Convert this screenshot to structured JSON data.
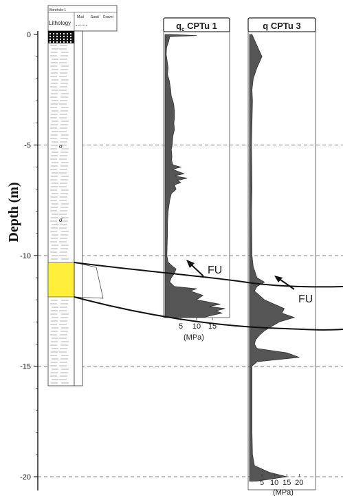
{
  "chart_data": {
    "type": "line",
    "ylabel": "Depth (m)",
    "ylim": [
      0,
      20
    ],
    "y_ticks": [
      "0",
      "-5",
      "-10",
      "-15",
      "-20"
    ],
    "log_panel": {
      "title": "Borehole 1",
      "lithology_label": "Lithology",
      "grain_headers": [
        "Mud",
        "Sand",
        "Gravel"
      ],
      "lithology_colors": {
        "gravel": "#111111",
        "mud": "#444444",
        "sand": "#ffef3a"
      }
    },
    "panels": [
      {
        "title_q": "q",
        "title_sub": "c",
        "title_rest": " CPTu 1",
        "xlabel": "(MPa)",
        "xticks": [
          "5",
          "10",
          "15"
        ],
        "xlim": [
          0,
          20
        ],
        "depth_range": [
          0,
          12.8
        ],
        "series": [
          {
            "values": [
              [
                0,
                1.5
              ],
              [
                0.05,
                10
              ],
              [
                0.1,
                1.5
              ],
              [
                0.3,
                1.2
              ],
              [
                0.6,
                0.5
              ],
              [
                0.9,
                0.4
              ],
              [
                1.2,
                0.7
              ],
              [
                1.5,
                1.0
              ],
              [
                1.8,
                0.8
              ],
              [
                2.1,
                1.4
              ],
              [
                2.5,
                1.8
              ],
              [
                2.8,
                2.0
              ],
              [
                3.0,
                2.5
              ],
              [
                3.2,
                2.8
              ],
              [
                3.5,
                3.0
              ],
              [
                3.8,
                3.0
              ],
              [
                4.0,
                2.8
              ],
              [
                4.3,
                3.0
              ],
              [
                4.6,
                2.5
              ],
              [
                4.8,
                2.4
              ],
              [
                5.0,
                2.3
              ],
              [
                5.2,
                2.0
              ],
              [
                5.5,
                2.2
              ],
              [
                5.7,
                2.1
              ],
              [
                5.9,
                2.5
              ],
              [
                6.0,
                5.0
              ],
              [
                6.1,
                2.4
              ],
              [
                6.3,
                6.0
              ],
              [
                6.4,
                3.0
              ],
              [
                6.5,
                7.0
              ],
              [
                6.6,
                4.0
              ],
              [
                6.7,
                5.0
              ],
              [
                6.8,
                3.0
              ],
              [
                7.0,
                3.5
              ],
              [
                7.2,
                2.0
              ],
              [
                7.5,
                1.5
              ],
              [
                8.0,
                1.0
              ],
              [
                8.5,
                0.8
              ],
              [
                9.0,
                0.8
              ],
              [
                9.5,
                0.7
              ],
              [
                10.0,
                0.6
              ],
              [
                10.3,
                1.0
              ],
              [
                10.5,
                2.5
              ],
              [
                10.6,
                3.5
              ],
              [
                10.8,
                3.0
              ],
              [
                11.0,
                2.0
              ],
              [
                11.2,
                1.5
              ],
              [
                11.4,
                3.0
              ],
              [
                11.5,
                10.0
              ],
              [
                11.6,
                8.0
              ],
              [
                11.8,
                12.0
              ],
              [
                12.0,
                10.0
              ],
              [
                12.2,
                17.5
              ],
              [
                12.3,
                14.0
              ],
              [
                12.4,
                19.0
              ],
              [
                12.5,
                16.0
              ],
              [
                12.6,
                18.0
              ],
              [
                12.8,
                12.0
              ]
            ]
          }
        ],
        "annotation": "FU"
      },
      {
        "title_q": "q",
        "title_sub": "",
        "title_rest": "  CPTu 3",
        "xlabel": "(MPa)",
        "xticks": [
          "5",
          "10",
          "15",
          "20"
        ],
        "xlim": [
          0,
          26
        ],
        "depth_range": [
          0,
          20.2
        ],
        "series": [
          {
            "values": [
              [
                0,
                1.0
              ],
              [
                0.5,
                3.0
              ],
              [
                1.0,
                5.0
              ],
              [
                1.5,
                3.0
              ],
              [
                2.0,
                1.5
              ],
              [
                2.5,
                1.0
              ],
              [
                3.0,
                1.2
              ],
              [
                4.0,
                1.0
              ],
              [
                5.0,
                0.8
              ],
              [
                6.0,
                0.9
              ],
              [
                7.0,
                1.0
              ],
              [
                8.0,
                0.8
              ],
              [
                9.0,
                0.9
              ],
              [
                10.0,
                1.0
              ],
              [
                10.5,
                1.5
              ],
              [
                11.0,
                3.0
              ],
              [
                11.2,
                6.0
              ],
              [
                11.4,
                3.0
              ],
              [
                11.6,
                2.0
              ],
              [
                11.8,
                4.0
              ],
              [
                12.0,
                6.0
              ],
              [
                12.2,
                10.0
              ],
              [
                12.4,
                14.0
              ],
              [
                12.6,
                13.0
              ],
              [
                12.8,
                18.0
              ],
              [
                13.0,
                12.0
              ],
              [
                13.2,
                9.0
              ],
              [
                13.4,
                6.0
              ],
              [
                13.6,
                4.0
              ],
              [
                13.8,
                2.5
              ],
              [
                14.0,
                2.0
              ],
              [
                14.2,
                3.0
              ],
              [
                14.4,
                15.0
              ],
              [
                14.6,
                20.0
              ],
              [
                14.8,
                3.0
              ],
              [
                15.0,
                1.0
              ],
              [
                16.0,
                1.0
              ],
              [
                17.0,
                1.0
              ],
              [
                18.0,
                1.0
              ],
              [
                19.0,
                1.2
              ],
              [
                19.5,
                2.0
              ],
              [
                19.8,
                8.0
              ],
              [
                20.0,
                15.0
              ],
              [
                20.2,
                3.0
              ]
            ]
          }
        ],
        "annotation": "FU"
      }
    ]
  }
}
